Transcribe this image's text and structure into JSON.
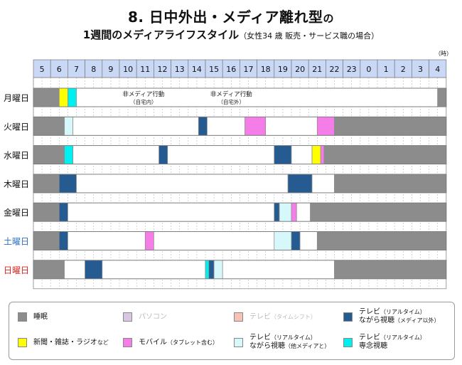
{
  "title": {
    "main": "8. 日中外出・メディア離れ型",
    "main_suffix": "の",
    "sub": "1週間のメディアライフスタイル",
    "sub_paren": "（女性34 歳 販売・サービス職の場合）"
  },
  "unit_label": "（時）",
  "colors": {
    "sleep": "#8c8c8c",
    "pc": "#d8c6e2",
    "tv_shift": "#f6c2b4",
    "tv_nagara": "#265b92",
    "newspaper": "#ffff00",
    "mobile": "#f47de8",
    "tv_nagara_other": "#d6f8fa",
    "tv_focus": "#00f0f0",
    "blank": "#c8c8c8",
    "hour_bg": "#c8d8f5",
    "sat_label": "#2b6fc4",
    "sun_label": "#e0201a"
  },
  "chart_data": {
    "type": "table",
    "hours": [
      "5",
      "6",
      "7",
      "8",
      "9",
      "10",
      "11",
      "12",
      "13",
      "14",
      "15",
      "16",
      "17",
      "18",
      "19",
      "20",
      "21",
      "22",
      "23",
      "0",
      "1",
      "2",
      "3",
      "4"
    ],
    "days": [
      {
        "label": "月曜日",
        "color": "#111111",
        "segments": [
          {
            "start": 5,
            "end": 6.5,
            "kind": "sleep"
          },
          {
            "start": 6.5,
            "end": 7,
            "kind": "newspaper"
          },
          {
            "start": 7,
            "end": 7.5,
            "kind": "tv_focus"
          },
          {
            "start": 7.5,
            "end": 28.5,
            "kind": "white"
          },
          {
            "start": 28.5,
            "end": 29,
            "kind": "sleep"
          }
        ],
        "annotations": [
          {
            "text": "非メディア行動",
            "sub": "（自宅内）",
            "at": 11.4
          },
          {
            "text": "非メディア行動",
            "sub": "（自宅外）",
            "at": 16.5
          }
        ]
      },
      {
        "label": "火曜日",
        "color": "#111111",
        "segments": [
          {
            "start": 5,
            "end": 6.8,
            "kind": "sleep"
          },
          {
            "start": 6.8,
            "end": 7.3,
            "kind": "tv_nagara_other"
          },
          {
            "start": 7.3,
            "end": 14.6,
            "kind": "white"
          },
          {
            "start": 14.6,
            "end": 15.1,
            "kind": "tv_nagara"
          },
          {
            "start": 15.1,
            "end": 17.3,
            "kind": "white"
          },
          {
            "start": 17.3,
            "end": 18.5,
            "kind": "mobile"
          },
          {
            "start": 18.5,
            "end": 21.5,
            "kind": "white"
          },
          {
            "start": 21.5,
            "end": 22.5,
            "kind": "mobile"
          },
          {
            "start": 22.5,
            "end": 29,
            "kind": "sleep"
          }
        ]
      },
      {
        "label": "水曜日",
        "color": "#111111",
        "segments": [
          {
            "start": 5,
            "end": 6.8,
            "kind": "sleep"
          },
          {
            "start": 6.8,
            "end": 7.3,
            "kind": "tv_focus"
          },
          {
            "start": 7.3,
            "end": 12.3,
            "kind": "white"
          },
          {
            "start": 12.3,
            "end": 12.8,
            "kind": "tv_nagara"
          },
          {
            "start": 12.8,
            "end": 19,
            "kind": "white"
          },
          {
            "start": 19,
            "end": 20,
            "kind": "tv_nagara"
          },
          {
            "start": 20,
            "end": 21.2,
            "kind": "white"
          },
          {
            "start": 21.2,
            "end": 21.7,
            "kind": "newspaper"
          },
          {
            "start": 21.7,
            "end": 21.9,
            "kind": "mobile"
          },
          {
            "start": 21.9,
            "end": 29,
            "kind": "sleep"
          }
        ]
      },
      {
        "label": "木曜日",
        "color": "#111111",
        "segments": [
          {
            "start": 5,
            "end": 6.5,
            "kind": "sleep"
          },
          {
            "start": 6.5,
            "end": 7.5,
            "kind": "tv_nagara"
          },
          {
            "start": 7.5,
            "end": 19.8,
            "kind": "white"
          },
          {
            "start": 19.8,
            "end": 21.2,
            "kind": "tv_nagara"
          },
          {
            "start": 21.2,
            "end": 22.5,
            "kind": "white"
          },
          {
            "start": 22.5,
            "end": 29,
            "kind": "sleep"
          }
        ]
      },
      {
        "label": "金曜日",
        "color": "#111111",
        "segments": [
          {
            "start": 5,
            "end": 6.5,
            "kind": "sleep"
          },
          {
            "start": 6.5,
            "end": 7,
            "kind": "tv_nagara"
          },
          {
            "start": 7,
            "end": 19,
            "kind": "white"
          },
          {
            "start": 19,
            "end": 19.3,
            "kind": "tv_nagara"
          },
          {
            "start": 19.3,
            "end": 20,
            "kind": "tv_nagara_other"
          },
          {
            "start": 20,
            "end": 20.3,
            "kind": "mobile"
          },
          {
            "start": 20.3,
            "end": 21.1,
            "kind": "white"
          },
          {
            "start": 21.1,
            "end": 29,
            "kind": "sleep"
          }
        ]
      },
      {
        "label": "土曜日",
        "color": "#2b6fc4",
        "segments": [
          {
            "start": 5,
            "end": 6.5,
            "kind": "sleep"
          },
          {
            "start": 6.5,
            "end": 7,
            "kind": "tv_nagara"
          },
          {
            "start": 7,
            "end": 11.5,
            "kind": "white"
          },
          {
            "start": 11.5,
            "end": 12,
            "kind": "mobile"
          },
          {
            "start": 12,
            "end": 19,
            "kind": "white"
          },
          {
            "start": 19,
            "end": 20,
            "kind": "tv_nagara_other"
          },
          {
            "start": 20,
            "end": 20.5,
            "kind": "tv_nagara"
          },
          {
            "start": 20.5,
            "end": 21.5,
            "kind": "white"
          },
          {
            "start": 21.5,
            "end": 29,
            "kind": "sleep"
          }
        ]
      },
      {
        "label": "日曜日",
        "color": "#e0201a",
        "segments": [
          {
            "start": 5,
            "end": 6.8,
            "kind": "sleep"
          },
          {
            "start": 6.8,
            "end": 8,
            "kind": "white"
          },
          {
            "start": 8,
            "end": 9,
            "kind": "tv_nagara"
          },
          {
            "start": 9,
            "end": 15,
            "kind": "white"
          },
          {
            "start": 15,
            "end": 15.2,
            "kind": "tv_focus"
          },
          {
            "start": 15.2,
            "end": 15.5,
            "kind": "tv_nagara"
          },
          {
            "start": 15.5,
            "end": 16,
            "kind": "tv_nagara_other"
          },
          {
            "start": 16,
            "end": 22.5,
            "kind": "white"
          },
          {
            "start": 22.5,
            "end": 29,
            "kind": "sleep"
          }
        ]
      }
    ]
  },
  "legend": [
    {
      "key": "sleep",
      "label": "睡眠",
      "small": "",
      "label2": "",
      "small2": "",
      "color": "#8c8c8c",
      "text_color": "#111111"
    },
    {
      "key": "pc",
      "label": "パソコン",
      "small": "",
      "label2": "",
      "small2": "",
      "color": "#d8c6e2",
      "text_color": "#bbbbbb"
    },
    {
      "key": "tv_shift",
      "label": "テレビ",
      "small": "（タイムシフト）",
      "label2": "",
      "small2": "",
      "color": "#f6c2b4",
      "text_color": "#bbbbbb"
    },
    {
      "key": "tv_nagara",
      "label": "テレビ",
      "small": "（リアルタイム）",
      "label2": "ながら視聴",
      "small2": "（メディア以外）",
      "color": "#265b92",
      "text_color": "#111111"
    },
    {
      "key": "newspaper",
      "label": "新聞・雑誌・ラジオ",
      "small": "など",
      "label2": "",
      "small2": "",
      "color": "#ffff00",
      "text_color": "#111111"
    },
    {
      "key": "mobile",
      "label": "モバイル",
      "small": "（タブレット含む）",
      "label2": "",
      "small2": "",
      "color": "#f47de8",
      "text_color": "#111111"
    },
    {
      "key": "tv_nagara_other",
      "label": "テレビ",
      "small": "（リアルタイム）",
      "label2": "ながら視聴",
      "small2": "（他メディアと）",
      "color": "#d6f8fa",
      "text_color": "#111111"
    },
    {
      "key": "tv_focus",
      "label": "テレビ",
      "small": "（リアルタイム）",
      "label2": "専念視聴",
      "small2": "",
      "color": "#00f0f0",
      "text_color": "#111111"
    }
  ]
}
